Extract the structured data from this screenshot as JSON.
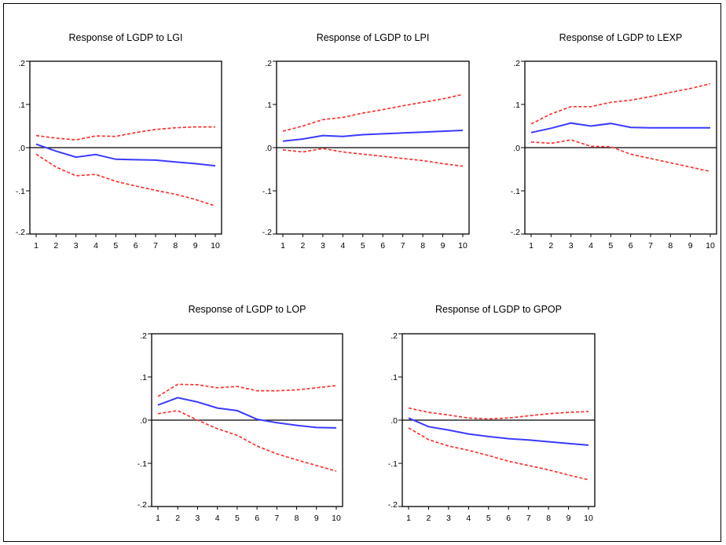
{
  "colors": {
    "response": "#3b3bff",
    "band": "#ff3030",
    "zero_line": "#000000",
    "frame": "#000000"
  },
  "chart_data": [
    {
      "type": "line",
      "title": "Response of LGDP to LGI",
      "x": [
        1,
        2,
        3,
        4,
        5,
        6,
        7,
        8,
        9,
        10
      ],
      "ylim": [
        -0.2,
        0.2
      ],
      "yticks": [
        ".2",
        ".1",
        ".0",
        "-.1",
        "-.2"
      ],
      "series": [
        {
          "role": "response",
          "values": [
            0.008,
            -0.008,
            -0.022,
            -0.016,
            -0.027,
            -0.028,
            -0.029,
            -0.033,
            -0.037,
            -0.042
          ]
        },
        {
          "role": "upper",
          "values": [
            0.028,
            0.022,
            0.018,
            0.027,
            0.026,
            0.035,
            0.042,
            0.046,
            0.048,
            0.048
          ]
        },
        {
          "role": "lower",
          "values": [
            -0.015,
            -0.045,
            -0.065,
            -0.062,
            -0.078,
            -0.089,
            -0.099,
            -0.108,
            -0.12,
            -0.135
          ]
        }
      ]
    },
    {
      "type": "line",
      "title": "Response of LGDP to LPI",
      "x": [
        1,
        2,
        3,
        4,
        5,
        6,
        7,
        8,
        9,
        10
      ],
      "ylim": [
        -0.2,
        0.2
      ],
      "yticks": [
        ".2",
        ".1",
        ".0",
        "-.1",
        "-.2"
      ],
      "series": [
        {
          "role": "response",
          "values": [
            0.015,
            0.02,
            0.028,
            0.026,
            0.03,
            0.032,
            0.034,
            0.036,
            0.038,
            0.04
          ]
        },
        {
          "role": "upper",
          "values": [
            0.038,
            0.05,
            0.065,
            0.07,
            0.08,
            0.088,
            0.097,
            0.105,
            0.113,
            0.123
          ]
        },
        {
          "role": "lower",
          "values": [
            -0.005,
            -0.01,
            -0.002,
            -0.01,
            -0.015,
            -0.02,
            -0.025,
            -0.03,
            -0.037,
            -0.043
          ]
        }
      ]
    },
    {
      "type": "line",
      "title": "Response of LGDP to LEXP",
      "x": [
        1,
        2,
        3,
        4,
        5,
        6,
        7,
        8,
        9,
        10
      ],
      "ylim": [
        -0.2,
        0.2
      ],
      "yticks": [
        ".2",
        ".1",
        ".0",
        "-.1",
        "-.2"
      ],
      "series": [
        {
          "role": "response",
          "values": [
            0.035,
            0.045,
            0.057,
            0.05,
            0.056,
            0.047,
            0.046,
            0.046,
            0.046,
            0.046
          ]
        },
        {
          "role": "upper",
          "values": [
            0.055,
            0.078,
            0.095,
            0.095,
            0.105,
            0.11,
            0.118,
            0.128,
            0.137,
            0.148
          ]
        },
        {
          "role": "lower",
          "values": [
            0.013,
            0.01,
            0.018,
            0.003,
            0.002,
            -0.015,
            -0.025,
            -0.035,
            -0.045,
            -0.055
          ]
        }
      ]
    },
    {
      "type": "line",
      "title": "Response of LGDP to LOP",
      "x": [
        1,
        2,
        3,
        4,
        5,
        6,
        7,
        8,
        9,
        10
      ],
      "ylim": [
        -0.2,
        0.2
      ],
      "yticks": [
        ".2",
        ".1",
        ".0",
        "-.1",
        "-.2"
      ],
      "series": [
        {
          "role": "response",
          "values": [
            0.035,
            0.052,
            0.042,
            0.028,
            0.022,
            0.002,
            -0.006,
            -0.012,
            -0.017,
            -0.018
          ]
        },
        {
          "role": "upper",
          "values": [
            0.055,
            0.083,
            0.082,
            0.075,
            0.078,
            0.068,
            0.068,
            0.07,
            0.075,
            0.08
          ]
        },
        {
          "role": "lower",
          "values": [
            0.015,
            0.022,
            0.0,
            -0.02,
            -0.035,
            -0.06,
            -0.078,
            -0.092,
            -0.105,
            -0.118
          ]
        }
      ]
    },
    {
      "type": "line",
      "title": "Response of LGDP to GPOP",
      "x": [
        1,
        2,
        3,
        4,
        5,
        6,
        7,
        8,
        9,
        10
      ],
      "ylim": [
        -0.2,
        0.2
      ],
      "yticks": [
        ".2",
        ".1",
        ".0",
        "-.1",
        "-.2"
      ],
      "series": [
        {
          "role": "response",
          "values": [
            0.005,
            -0.015,
            -0.023,
            -0.032,
            -0.038,
            -0.043,
            -0.046,
            -0.05,
            -0.054,
            -0.058
          ]
        },
        {
          "role": "upper",
          "values": [
            0.028,
            0.018,
            0.012,
            0.005,
            0.003,
            0.005,
            0.01,
            0.015,
            0.018,
            0.02
          ]
        },
        {
          "role": "lower",
          "values": [
            -0.018,
            -0.045,
            -0.06,
            -0.07,
            -0.082,
            -0.095,
            -0.105,
            -0.115,
            -0.127,
            -0.138
          ]
        }
      ]
    }
  ]
}
